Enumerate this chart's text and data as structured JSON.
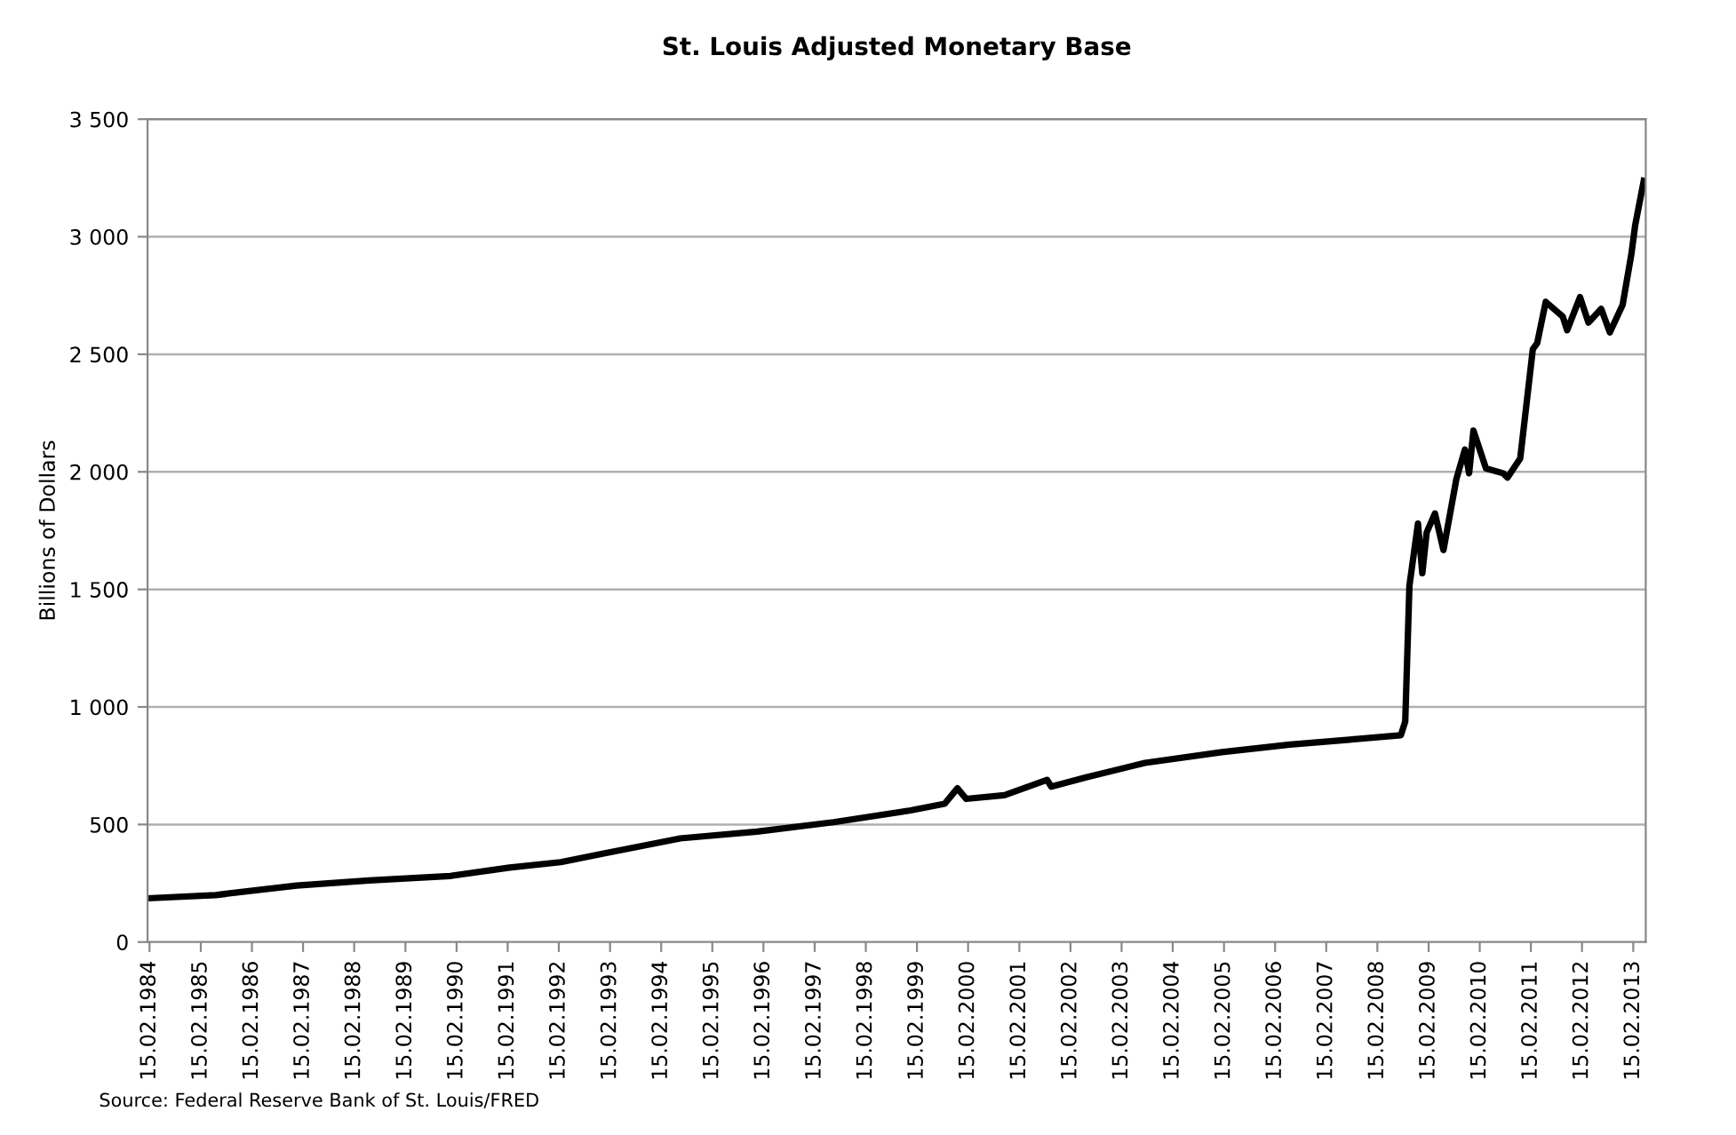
{
  "chart_data": {
    "type": "line",
    "title": "St. Louis Adjusted Monetary Base",
    "ylabel": "Billions of Dollars",
    "annotations": [
      "Source: Federal Reserve Bank of St. Louis/FRED"
    ],
    "x": [
      "1984-02",
      "1985-06",
      "1987-01",
      "1988-06",
      "1990-01",
      "1991-03",
      "1992-03",
      "1993-01",
      "1994-07",
      "1996-01",
      "1997-07",
      "1999-01",
      "1999-09",
      "1999-12",
      "2000-02",
      "2000-11",
      "2001-09",
      "2001-10",
      "2002-06",
      "2003-08",
      "2005-02",
      "2006-06",
      "2007-08",
      "2008-08",
      "2008-09",
      "2008-10",
      "2008-12",
      "2009-01",
      "2009-02",
      "2009-04",
      "2009-06",
      "2009-09",
      "2009-11",
      "2009-12",
      "2010-01",
      "2010-04",
      "2010-08",
      "2010-09",
      "2010-12",
      "2011-03",
      "2011-04",
      "2011-06",
      "2011-10",
      "2011-11",
      "2012-02",
      "2012-04",
      "2012-07",
      "2012-09",
      "2012-12",
      "2013-02",
      "2013-03",
      "2013-05"
    ],
    "series": [
      {
        "color": "#000000",
        "values": [
          186,
          200,
          240,
          262,
          281,
          317,
          340,
          377,
          441,
          470,
          510,
          560,
          588,
          654,
          609,
          625,
          690,
          661,
          700,
          762,
          808,
          840,
          861,
          880,
          938,
          1516,
          1780,
          1569,
          1742,
          1823,
          1667,
          1969,
          2095,
          1994,
          2175,
          2014,
          1994,
          1976,
          2057,
          2522,
          2547,
          2723,
          2660,
          2602,
          2743,
          2635,
          2693,
          2593,
          2710,
          2924,
          3050,
          3238
        ]
      }
    ],
    "xlim": [
      "1984-02-01",
      "2013-05-15"
    ],
    "xticks": [
      {
        "value": "1984-02-15",
        "label": "15.02.1984"
      },
      {
        "value": "1985-02-15",
        "label": "15.02.1985"
      },
      {
        "value": "1986-02-15",
        "label": "15.02.1986"
      },
      {
        "value": "1987-02-15",
        "label": "15.02.1987"
      },
      {
        "value": "1988-02-15",
        "label": "15.02.1988"
      },
      {
        "value": "1989-02-15",
        "label": "15.02.1989"
      },
      {
        "value": "1990-02-15",
        "label": "15.02.1990"
      },
      {
        "value": "1991-02-15",
        "label": "15.02.1991"
      },
      {
        "value": "1992-02-15",
        "label": "15.02.1992"
      },
      {
        "value": "1993-02-15",
        "label": "15.02.1993"
      },
      {
        "value": "1994-02-15",
        "label": "15.02.1994"
      },
      {
        "value": "1995-02-15",
        "label": "15.02.1995"
      },
      {
        "value": "1996-02-15",
        "label": "15.02.1996"
      },
      {
        "value": "1997-02-15",
        "label": "15.02.1997"
      },
      {
        "value": "1998-02-15",
        "label": "15.02.1998"
      },
      {
        "value": "1999-02-15",
        "label": "15.02.1999"
      },
      {
        "value": "2000-02-15",
        "label": "15.02.2000"
      },
      {
        "value": "2001-02-15",
        "label": "15.02.2001"
      },
      {
        "value": "2002-02-15",
        "label": "15.02.2002"
      },
      {
        "value": "2003-02-15",
        "label": "15.02.2003"
      },
      {
        "value": "2004-02-15",
        "label": "15.02.2004"
      },
      {
        "value": "2005-02-15",
        "label": "15.02.2005"
      },
      {
        "value": "2006-02-15",
        "label": "15.02.2006"
      },
      {
        "value": "2007-02-15",
        "label": "15.02.2007"
      },
      {
        "value": "2008-02-15",
        "label": "15.02.2008"
      },
      {
        "value": "2009-02-15",
        "label": "15.02.2009"
      },
      {
        "value": "2010-02-15",
        "label": "15.02.2010"
      },
      {
        "value": "2011-02-15",
        "label": "15.02.2011"
      },
      {
        "value": "2012-02-15",
        "label": "15.02.2012"
      },
      {
        "value": "2013-02-15",
        "label": "15.02.2013"
      }
    ],
    "ylim": [
      0,
      3500
    ],
    "yticks": [
      0,
      500,
      {
        "value": 1000,
        "label": "1 000"
      },
      {
        "value": 1500,
        "label": "1 500"
      },
      {
        "value": 2000,
        "label": "2 000"
      },
      {
        "value": 2500,
        "label": "2 500"
      },
      {
        "value": 3000,
        "label": "3 000"
      },
      {
        "value": 3500,
        "label": "3 500"
      }
    ],
    "grid": "y",
    "legend": false,
    "marker": "none",
    "line_style": "solid"
  }
}
